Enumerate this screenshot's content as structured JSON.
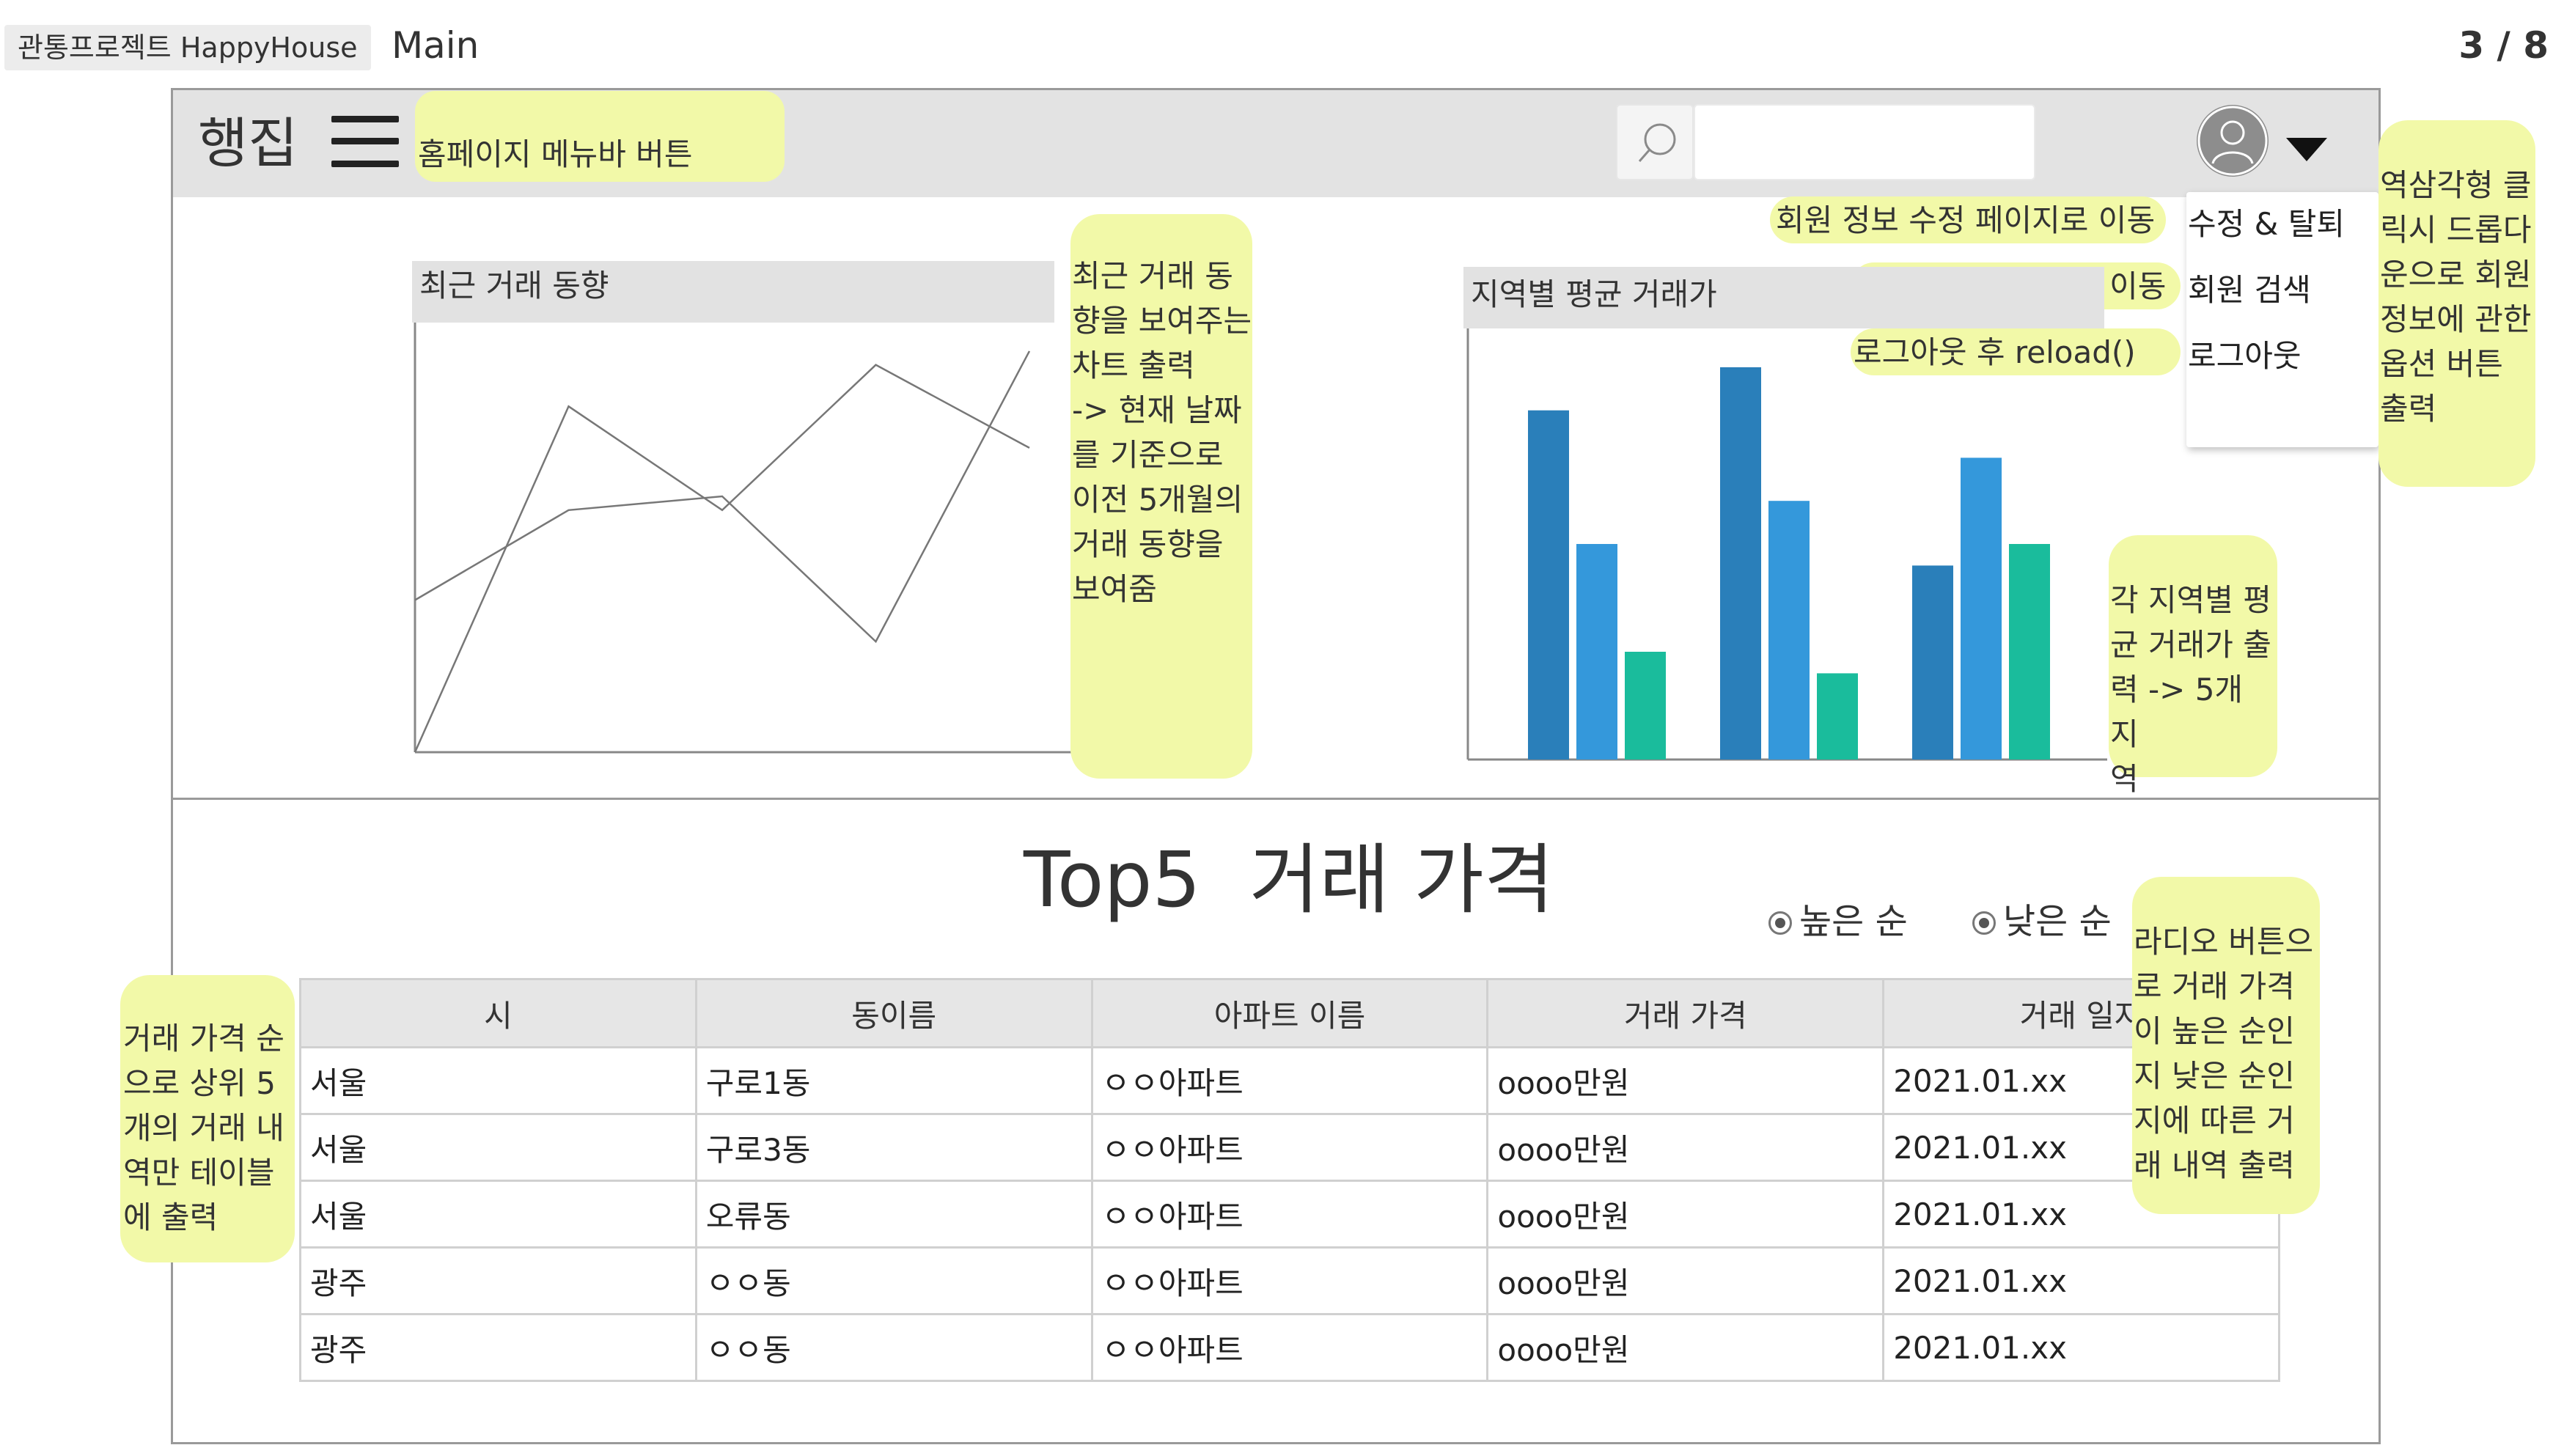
{
  "meta": {
    "project_label": "관통프로젝트 HappyHouse",
    "page_name": "Main",
    "page_number": "3 / 8"
  },
  "header": {
    "logo": "행집",
    "search": {
      "placeholder": ""
    }
  },
  "dropdown": {
    "items": [
      "수정 & 탈퇴",
      "회원 검색",
      "로그아웃"
    ]
  },
  "notes": {
    "menubar": "홈페이지 메뉴바 버튼",
    "edit_member": "회원 정보 수정 페이지로 이동",
    "search_member": "회원 검색 페이지로 이동",
    "logout": "로그아웃 후 reload()",
    "triangle": "역삼각형 클\n릭시 드롭다\n운으로 회원\n정보에 관한\n옵션 버튼\n출력",
    "trend_chart": "최근 거래 동\n향을 보여주는\n차트 출력\n-> 현재 날짜\n를 기준으로\n이전 5개월의\n거래 동향을\n보여줌",
    "region_chart": "각 지역별 평\n균 거래가 출\n력 -> 5개 지\n역",
    "radio_note": "라디오 버튼으\n로 거래 가격\n이 높은 순인\n지 낮은 순인\n지에 따른 거\n래 내역 출력",
    "table_note": "거래 가격 순\n으로 상위 5\n개의 거래 내\n역만 테이블\n에 출력"
  },
  "trend_chart_title": "최근 거래 동향",
  "region_chart_title": "지역별 평균 거래가",
  "chart_data": [
    {
      "type": "line",
      "title": "최근 거래 동향",
      "x": [
        0,
        1,
        2,
        3,
        4
      ],
      "series": [
        {
          "values": [
            2.2,
            3.5,
            3.7,
            1.6,
            5.8
          ]
        },
        {
          "values": [
            0,
            5,
            3.5,
            5.6,
            4.4
          ]
        }
      ],
      "ylim": [
        0,
        6
      ],
      "grid": false
    },
    {
      "type": "bar",
      "title": "지역별 평균 거래가",
      "categories": [
        "",
        "",
        ""
      ],
      "series": [
        {
          "values": [
            8.1,
            9.1,
            4.5
          ],
          "color": "#2a7fba"
        },
        {
          "values": [
            5.0,
            6.0,
            7.0
          ],
          "color": "#3498db"
        },
        {
          "values": [
            2.5,
            2.0,
            5.0
          ],
          "color": "#1abc9c"
        }
      ],
      "ylim": [
        0,
        10
      ],
      "grid": false
    }
  ],
  "sort": {
    "high": "높은 순",
    "low": "낮은 순"
  },
  "top5_title": "Top5  거래 가격",
  "table": {
    "headers": [
      "시",
      "동이름",
      "아파트 이름",
      "거래 가격",
      "거래 일자"
    ],
    "rows": [
      [
        "서울",
        "구로1동",
        "ㅇㅇ아파트",
        "oooo만원",
        "2021.01.xx"
      ],
      [
        "서울",
        "구로3동",
        "ㅇㅇ아파트",
        "oooo만원",
        "2021.01.xx"
      ],
      [
        "서울",
        "오류동",
        "ㅇㅇ아파트",
        "oooo만원",
        "2021.01.xx"
      ],
      [
        "광주",
        "ㅇㅇ동",
        "ㅇㅇ아파트",
        "oooo만원",
        "2021.01.xx"
      ],
      [
        "광주",
        "ㅇㅇ동",
        "ㅇㅇ아파트",
        "oooo만원",
        "2021.01.xx"
      ]
    ]
  }
}
